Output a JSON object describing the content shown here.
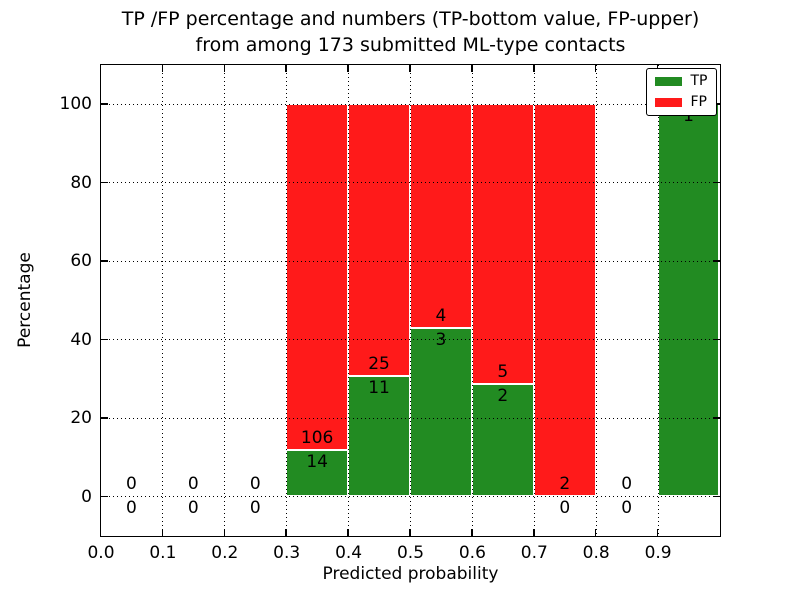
{
  "chart_data": {
    "type": "bar",
    "stacked": true,
    "title_line1": "TP /FP percentage and numbers (TP-bottom value, FP-upper)",
    "title_line2": "from among 173 submitted ML-type contacts",
    "title": "TP /FP percentage and numbers (TP-bottom value, FP-upper)\nfrom among 173 submitted ML-type contacts",
    "xlabel": "Predicted probability",
    "ylabel": "Percentage",
    "xlim": [
      0.0,
      1.0
    ],
    "ylim": [
      -10,
      110
    ],
    "xtick_values": [
      0.0,
      0.1,
      0.2,
      0.3,
      0.4,
      0.5,
      0.6,
      0.7,
      0.8,
      0.9
    ],
    "xtick_labels": [
      "0.0",
      "0.1",
      "0.2",
      "0.3",
      "0.4",
      "0.5",
      "0.6",
      "0.7",
      "0.8",
      "0.9"
    ],
    "ytick_values": [
      0,
      20,
      40,
      60,
      80,
      100
    ],
    "ytick_labels": [
      "0",
      "20",
      "40",
      "60",
      "80",
      "100"
    ],
    "grid": "dotted",
    "legend": {
      "position": "upper right",
      "entries": [
        {
          "label": "TP",
          "color": "#228b22"
        },
        {
          "label": "FP",
          "color": "#ff1a1a"
        }
      ]
    },
    "total_contacts": 173,
    "bin_width": 0.1,
    "bins": [
      {
        "x_start": 0.0,
        "tp": 0,
        "fp": 0
      },
      {
        "x_start": 0.1,
        "tp": 0,
        "fp": 0
      },
      {
        "x_start": 0.2,
        "tp": 0,
        "fp": 0
      },
      {
        "x_start": 0.3,
        "tp": 14,
        "fp": 106
      },
      {
        "x_start": 0.4,
        "tp": 11,
        "fp": 25
      },
      {
        "x_start": 0.5,
        "tp": 3,
        "fp": 4
      },
      {
        "x_start": 0.6,
        "tp": 2,
        "fp": 5
      },
      {
        "x_start": 0.7,
        "tp": 0,
        "fp": 2
      },
      {
        "x_start": 0.8,
        "tp": 0,
        "fp": 0
      },
      {
        "x_start": 0.9,
        "tp": 1,
        "fp": 0
      }
    ],
    "tp_percent_by_bin": [
      0,
      0,
      0,
      11.67,
      30.56,
      42.86,
      28.57,
      0,
      0,
      100
    ]
  }
}
